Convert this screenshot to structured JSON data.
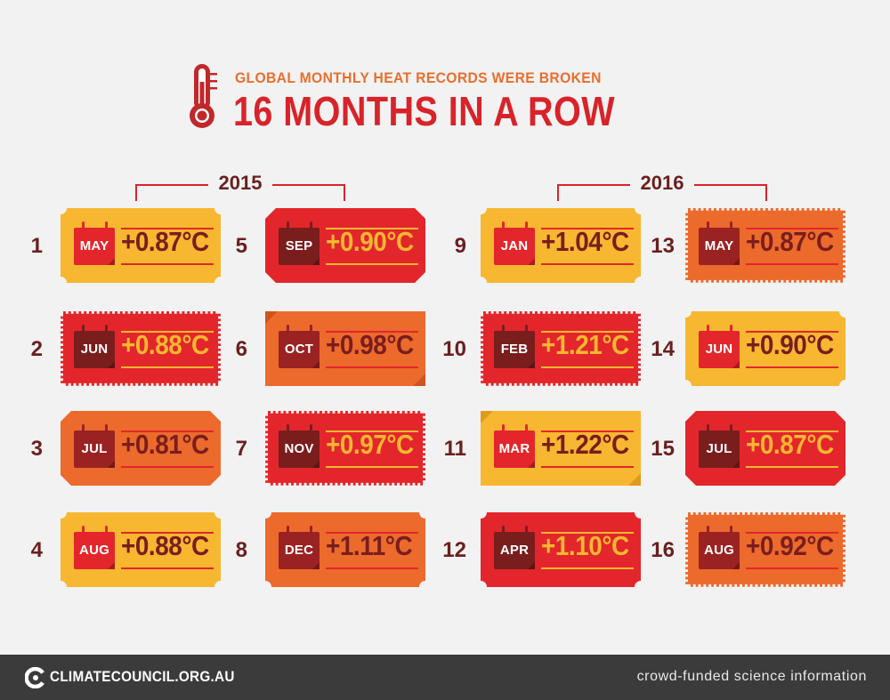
{
  "header": {
    "subtitle": "GLOBAL MONTHLY HEAT RECORDS WERE BROKEN",
    "title": "16 MONTHS IN A ROW",
    "icon": "thermometer-icon"
  },
  "years": [
    "2015",
    "2016"
  ],
  "colors": {
    "yellow": "#f7b731",
    "red": "#e3262b",
    "orange": "#ec6a2c",
    "dark_red": "#7a1d1d",
    "text_dark": "#6a1f1f",
    "background": "#f2f2f2",
    "footer": "#3b3b3b"
  },
  "records": [
    {
      "num": "1",
      "month": "MAY",
      "temp": "+0.87°C",
      "color": "yellow",
      "style": "notched"
    },
    {
      "num": "2",
      "month": "JUN",
      "temp": "+0.88°C",
      "color": "red",
      "style": "perforated"
    },
    {
      "num": "3",
      "month": "JUL",
      "temp": "+0.81°C",
      "color": "orange",
      "style": "cut"
    },
    {
      "num": "4",
      "month": "AUG",
      "temp": "+0.88°C",
      "color": "yellow",
      "style": "notched"
    },
    {
      "num": "5",
      "month": "SEP",
      "temp": "+0.90°C",
      "color": "red",
      "style": "cut"
    },
    {
      "num": "6",
      "month": "OCT",
      "temp": "+0.98°C",
      "color": "orange",
      "style": "folded"
    },
    {
      "num": "7",
      "month": "NOV",
      "temp": "+0.97°C",
      "color": "red",
      "style": "perforated"
    },
    {
      "num": "8",
      "month": "DEC",
      "temp": "+1.11°C",
      "color": "orange",
      "style": "notched"
    },
    {
      "num": "9",
      "month": "JAN",
      "temp": "+1.04°C",
      "color": "yellow",
      "style": "notched"
    },
    {
      "num": "10",
      "month": "FEB",
      "temp": "+1.21°C",
      "color": "red",
      "style": "perforated"
    },
    {
      "num": "11",
      "month": "MAR",
      "temp": "+1.22°C",
      "color": "yellow",
      "style": "folded"
    },
    {
      "num": "12",
      "month": "APR",
      "temp": "+1.10°C",
      "color": "red",
      "style": "notched"
    },
    {
      "num": "13",
      "month": "MAY",
      "temp": "+0.87°C",
      "color": "orange",
      "style": "perforated"
    },
    {
      "num": "14",
      "month": "JUN",
      "temp": "+0.90°C",
      "color": "yellow",
      "style": "notched"
    },
    {
      "num": "15",
      "month": "JUL",
      "temp": "+0.87°C",
      "color": "red",
      "style": "cut"
    },
    {
      "num": "16",
      "month": "AUG",
      "temp": "+0.92°C",
      "color": "orange",
      "style": "perforated"
    }
  ],
  "footer": {
    "logo_text": "CLIMATECOUNCIL.ORG.AU",
    "logo_icon": "climate-council-logo-icon",
    "tagline": "crowd-funded science information"
  }
}
